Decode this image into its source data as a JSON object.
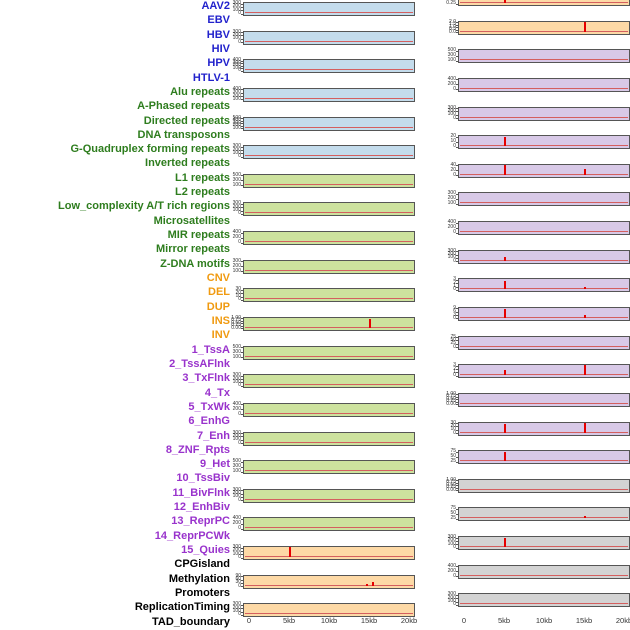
{
  "chart_data": {
    "type": "line",
    "layout": "small-multiples, 2 columns x 22 rows, column-major, staggered",
    "title": "",
    "x": {
      "ticks": [
        "0",
        "5kb",
        "10kb",
        "15kb",
        "20kb"
      ],
      "values_kb": [
        0,
        5,
        10,
        15,
        20
      ],
      "range_kb": [
        0,
        20
      ]
    },
    "tracks": [
      {
        "label": "AAV2",
        "group": "virus",
        "column": "left",
        "row": 1,
        "bg": "blue",
        "yticks": [
          "300",
          "200",
          "100",
          "0"
        ],
        "spikes": []
      },
      {
        "label": "EBV",
        "group": "virus",
        "column": "left",
        "row": 2,
        "bg": "blue",
        "yticks": [
          "300",
          "200",
          "100",
          "0"
        ],
        "spikes": []
      },
      {
        "label": "HBV",
        "group": "virus",
        "column": "left",
        "row": 3,
        "bg": "blue",
        "yticks": [
          "400",
          "300",
          "200",
          "100",
          "0"
        ],
        "spikes": []
      },
      {
        "label": "HIV",
        "group": "virus",
        "column": "left",
        "row": 4,
        "bg": "blue",
        "yticks": [
          "400",
          "300",
          "200",
          "100"
        ],
        "spikes": []
      },
      {
        "label": "HPV",
        "group": "virus",
        "column": "left",
        "row": 5,
        "bg": "blue",
        "yticks": [
          "500",
          "400",
          "300",
          "200",
          "100"
        ],
        "spikes": []
      },
      {
        "label": "HTLV-1",
        "group": "virus",
        "column": "left",
        "row": 6,
        "bg": "blue",
        "yticks": [
          "300",
          "200",
          "100",
          "0"
        ],
        "spikes": []
      },
      {
        "label": "Alu repeats",
        "group": "repeat",
        "column": "left",
        "row": 7,
        "bg": "green",
        "yticks": [
          "500",
          "300",
          "100"
        ],
        "spikes": []
      },
      {
        "label": "A-Phased repeats",
        "group": "repeat",
        "column": "left",
        "row": 8,
        "bg": "green",
        "yticks": [
          "300",
          "200",
          "100",
          "0"
        ],
        "spikes": []
      },
      {
        "label": "Directed repeats",
        "group": "repeat",
        "column": "left",
        "row": 9,
        "bg": "green",
        "yticks": [
          "400",
          "200",
          "0"
        ],
        "spikes": []
      },
      {
        "label": "DNA transposons",
        "group": "repeat",
        "column": "left",
        "row": 10,
        "bg": "green",
        "yticks": [
          "300",
          "200",
          "100"
        ],
        "spikes": []
      },
      {
        "label": "G-Quadruplex forming repeats",
        "group": "repeat",
        "column": "left",
        "row": 11,
        "bg": "green",
        "yticks": [
          "30",
          "20",
          "10",
          "0"
        ],
        "spikes": []
      },
      {
        "label": "Inverted repeats",
        "group": "repeat",
        "column": "left",
        "row": 12,
        "bg": "green",
        "yticks": [
          "1.00",
          "0.75",
          "0.50",
          "0.25",
          "0.00"
        ],
        "spikes": [
          {
            "kb": 15,
            "h": 0.85
          }
        ]
      },
      {
        "label": "L1 repeats",
        "group": "repeat",
        "column": "left",
        "row": 13,
        "bg": "green",
        "yticks": [
          "500",
          "300",
          "100"
        ],
        "spikes": []
      },
      {
        "label": "L2 repeats",
        "group": "repeat",
        "column": "left",
        "row": 14,
        "bg": "green",
        "yticks": [
          "300",
          "200",
          "100",
          "0"
        ],
        "spikes": []
      },
      {
        "label": "Low_complexity A/T rich regions",
        "group": "repeat",
        "column": "left",
        "row": 15,
        "bg": "green",
        "yticks": [
          "400",
          "200",
          "0"
        ],
        "spikes": []
      },
      {
        "label": "Microsatellites",
        "group": "repeat",
        "column": "left",
        "row": 16,
        "bg": "green",
        "yticks": [
          "300",
          "200",
          "100",
          "0"
        ],
        "spikes": []
      },
      {
        "label": "MIR repeats",
        "group": "repeat",
        "column": "left",
        "row": 17,
        "bg": "green",
        "yticks": [
          "500",
          "300",
          "100"
        ],
        "spikes": []
      },
      {
        "label": "Mirror repeats",
        "group": "repeat",
        "column": "left",
        "row": 18,
        "bg": "green",
        "yticks": [
          "300",
          "200",
          "100",
          "0"
        ],
        "spikes": []
      },
      {
        "label": "Z-DNA motifs",
        "group": "repeat",
        "column": "left",
        "row": 19,
        "bg": "green",
        "yticks": [
          "400",
          "200",
          "0"
        ],
        "spikes": []
      },
      {
        "label": "CNV",
        "group": "sv",
        "column": "left",
        "row": 20,
        "bg": "orange",
        "yticks": [
          "300",
          "200",
          "100",
          "0"
        ],
        "spikes": [
          {
            "kb": 5,
            "h": 0.9
          }
        ]
      },
      {
        "label": "DEL",
        "group": "sv",
        "column": "left",
        "row": 21,
        "bg": "orange",
        "yticks": [
          "90",
          "60",
          "30",
          "0"
        ],
        "spikes": [
          {
            "kb": 14.6,
            "h": 0.2
          },
          {
            "kb": 15.4,
            "h": 0.3
          }
        ]
      },
      {
        "label": "DUP",
        "group": "sv",
        "column": "left",
        "row": 22,
        "bg": "orange",
        "yticks": [
          "300",
          "200",
          "100",
          "0"
        ],
        "spikes": []
      },
      {
        "label": "INS",
        "group": "sv",
        "column": "right",
        "row": 1,
        "bg": "orange",
        "yticks": [
          "0.75",
          "0.50",
          "0.25"
        ],
        "spikes": [
          {
            "kb": 5,
            "h": 0.95
          }
        ]
      },
      {
        "label": "INV",
        "group": "sv",
        "column": "right",
        "row": 2,
        "bg": "orange",
        "yticks": [
          "2.0",
          "1.5",
          "1.0",
          "0.5",
          "0.0"
        ],
        "spikes": [
          {
            "kb": 15,
            "h": 0.95
          }
        ]
      },
      {
        "label": "1_TssA",
        "group": "chromatin",
        "column": "right",
        "row": 3,
        "bg": "purple",
        "yticks": [
          "500",
          "300",
          "100"
        ],
        "spikes": []
      },
      {
        "label": "2_TssAFlnk",
        "group": "chromatin",
        "column": "right",
        "row": 4,
        "bg": "purple",
        "yticks": [
          "400",
          "200",
          "0"
        ],
        "spikes": []
      },
      {
        "label": "3_TxFlnk",
        "group": "chromatin",
        "column": "right",
        "row": 5,
        "bg": "purple",
        "yticks": [
          "300",
          "200",
          "100",
          "0"
        ],
        "spikes": []
      },
      {
        "label": "4_Tx",
        "group": "chromatin",
        "column": "right",
        "row": 6,
        "bg": "purple",
        "yticks": [
          "20",
          "10",
          "0"
        ],
        "spikes": [
          {
            "kb": 5,
            "h": 0.8
          }
        ]
      },
      {
        "label": "5_TxWk",
        "group": "chromatin",
        "column": "right",
        "row": 7,
        "bg": "purple",
        "yticks": [
          "40",
          "20",
          "0"
        ],
        "spikes": [
          {
            "kb": 5,
            "h": 0.9
          },
          {
            "kb": 15,
            "h": 0.5
          }
        ]
      },
      {
        "label": "6_EnhG",
        "group": "chromatin",
        "column": "right",
        "row": 8,
        "bg": "purple",
        "yticks": [
          "300",
          "200",
          "100"
        ],
        "spikes": []
      },
      {
        "label": "7_Enh",
        "group": "chromatin",
        "column": "right",
        "row": 9,
        "bg": "purple",
        "yticks": [
          "400",
          "200",
          "0"
        ],
        "spikes": []
      },
      {
        "label": "8_ZNF_Rpts",
        "group": "chromatin",
        "column": "right",
        "row": 10,
        "bg": "purple",
        "yticks": [
          "300",
          "200",
          "100",
          "0"
        ],
        "spikes": [
          {
            "kb": 5,
            "h": 0.35
          }
        ]
      },
      {
        "label": "9_Het",
        "group": "chromatin",
        "column": "right",
        "row": 11,
        "bg": "purple",
        "yticks": [
          "3",
          "2",
          "1",
          "0"
        ],
        "spikes": [
          {
            "kb": 5,
            "h": 0.75
          },
          {
            "kb": 15,
            "h": 0.2
          }
        ]
      },
      {
        "label": "10_TssBiv",
        "group": "chromatin",
        "column": "right",
        "row": 12,
        "bg": "purple",
        "yticks": [
          "9",
          "6",
          "3",
          "0"
        ],
        "spikes": [
          {
            "kb": 5,
            "h": 0.85
          },
          {
            "kb": 15,
            "h": 0.3
          }
        ]
      },
      {
        "label": "11_BivFlnk",
        "group": "chromatin",
        "column": "right",
        "row": 13,
        "bg": "purple",
        "yticks": [
          "75",
          "50",
          "25",
          "0"
        ],
        "spikes": []
      },
      {
        "label": "12_EnhBiv",
        "group": "chromatin",
        "column": "right",
        "row": 14,
        "bg": "purple",
        "yticks": [
          "3",
          "2",
          "1",
          "0"
        ],
        "spikes": [
          {
            "kb": 5,
            "h": 0.5
          },
          {
            "kb": 15,
            "h": 0.9
          }
        ]
      },
      {
        "label": "13_ReprPC",
        "group": "chromatin",
        "column": "right",
        "row": 15,
        "bg": "purple",
        "yticks": [
          "1.00",
          "0.75",
          "0.50",
          "0.25",
          "0.00"
        ],
        "spikes": []
      },
      {
        "label": "14_ReprPCWk",
        "group": "chromatin",
        "column": "right",
        "row": 16,
        "bg": "purple",
        "yticks": [
          "30",
          "20",
          "10",
          "0"
        ],
        "spikes": [
          {
            "kb": 5,
            "h": 0.8
          },
          {
            "kb": 15,
            "h": 0.85
          }
        ]
      },
      {
        "label": "15_Quies",
        "group": "chromatin",
        "column": "right",
        "row": 17,
        "bg": "purple",
        "yticks": [
          "75",
          "50",
          "25"
        ],
        "spikes": [
          {
            "kb": 5,
            "h": 0.8
          }
        ]
      },
      {
        "label": "CPGisland",
        "group": "other",
        "column": "right",
        "row": 18,
        "bg": "gray",
        "yticks": [
          "1.00",
          "0.75",
          "0.50",
          "0.25",
          "0.00"
        ],
        "spikes": []
      },
      {
        "label": "Methylation",
        "group": "other",
        "column": "right",
        "row": 19,
        "bg": "gray",
        "yticks": [
          "75",
          "50",
          "25"
        ],
        "spikes": [
          {
            "kb": 15,
            "h": 0.2
          }
        ]
      },
      {
        "label": "Promoters",
        "group": "other",
        "column": "right",
        "row": 20,
        "bg": "gray",
        "yticks": [
          "300",
          "200",
          "100",
          "0"
        ],
        "spikes": [
          {
            "kb": 5,
            "h": 0.85
          }
        ]
      },
      {
        "label": "ReplicationTiming",
        "group": "other",
        "column": "right",
        "row": 21,
        "bg": "gray",
        "yticks": [
          "400",
          "200",
          "0"
        ],
        "spikes": []
      },
      {
        "label": "TAD_boundary",
        "group": "other",
        "column": "right",
        "row": 22,
        "bg": "gray",
        "yticks": [
          "300",
          "200",
          "100",
          "0"
        ],
        "spikes": []
      }
    ]
  },
  "styles": {
    "background": "#ffffff",
    "group_colors": {
      "virus": "#2222cc",
      "repeat": "#2e7d1e",
      "sv": "#f09a10",
      "chromatin": "#9933cc",
      "other": "#000000"
    },
    "bg_colors": {
      "blue": "#c4dcec",
      "green": "#cde29e",
      "orange": "#fdd9a6",
      "purple": "#d8c9e7",
      "gray": "#d3d3d3"
    },
    "spike_color": "#e60000",
    "baseline_color": "#d45f5f",
    "axis_text_color": "#333333",
    "strip_border_color": "#555555"
  }
}
